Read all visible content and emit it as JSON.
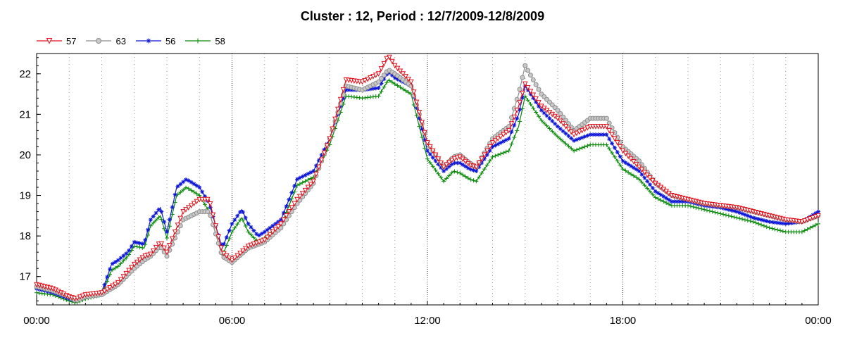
{
  "chart_data": {
    "type": "line",
    "title": "Cluster : 12, Period : 12/7/2009-12/8/2009",
    "xlabel": "",
    "ylabel": "",
    "x_ticks": [
      "00:00",
      "06:00",
      "12:00",
      "18:00",
      "00:00"
    ],
    "x_tick_hours": [
      0,
      6,
      12,
      18,
      24
    ],
    "xlim": [
      0,
      24
    ],
    "ylim": [
      16.3,
      22.5
    ],
    "y_ticks": [
      17,
      18,
      19,
      20,
      21,
      22
    ],
    "grid": {
      "vertical_major": true,
      "vertical_minor": true,
      "horizontal": false
    },
    "legend_position": "top-left",
    "x_unit": "hours",
    "series": [
      {
        "name": "57",
        "color": "#e0101a",
        "marker": "triangle-down",
        "x": [
          0,
          0.5,
          1,
          1.2,
          1.5,
          2,
          2.5,
          3,
          3.3,
          3.5,
          3.8,
          4,
          4.5,
          5,
          5.3,
          5.7,
          6,
          6.5,
          7,
          7.5,
          8,
          8.5,
          9,
          9.5,
          10,
          10.5,
          10.8,
          11,
          11.5,
          12,
          12.5,
          12.8,
          13,
          13.3,
          13.5,
          14,
          14.5,
          14.8,
          15,
          15.5,
          16,
          16.5,
          17,
          17.5,
          18,
          18.5,
          19,
          19.5,
          20,
          20.5,
          21,
          21.5,
          22,
          22.5,
          23,
          23.5,
          24
        ],
        "y": [
          16.8,
          16.7,
          16.5,
          16.45,
          16.55,
          16.6,
          16.85,
          17.3,
          17.5,
          17.55,
          17.85,
          17.6,
          18.6,
          18.9,
          18.9,
          17.6,
          17.4,
          17.75,
          17.9,
          18.3,
          18.9,
          19.35,
          20.4,
          21.85,
          21.8,
          22.0,
          22.45,
          22.2,
          21.8,
          20.3,
          19.7,
          19.9,
          19.95,
          19.75,
          19.7,
          20.3,
          20.6,
          21.2,
          21.75,
          21.2,
          20.9,
          20.5,
          20.7,
          20.7,
          20.1,
          19.7,
          19.3,
          19.0,
          18.9,
          18.8,
          18.75,
          18.7,
          18.6,
          18.5,
          18.4,
          18.35,
          18.5
        ]
      },
      {
        "name": "63",
        "color": "#8e8e8e",
        "marker": "circle",
        "x": [
          0,
          0.5,
          1,
          1.2,
          1.5,
          2,
          2.5,
          3,
          3.3,
          3.5,
          3.8,
          4,
          4.5,
          5,
          5.3,
          5.7,
          6,
          6.5,
          7,
          7.5,
          8,
          8.5,
          9,
          9.5,
          10,
          10.5,
          10.8,
          11,
          11.5,
          12,
          12.5,
          12.8,
          13,
          13.3,
          13.5,
          14,
          14.5,
          14.8,
          15,
          15.5,
          16,
          16.5,
          17,
          17.5,
          18,
          18.5,
          19,
          19.5,
          20,
          20.5,
          21,
          21.5,
          22,
          22.5,
          23,
          23.5,
          24
        ],
        "y": [
          16.75,
          16.65,
          16.5,
          16.4,
          16.5,
          16.55,
          16.8,
          17.2,
          17.4,
          17.5,
          17.75,
          17.5,
          18.4,
          18.6,
          18.6,
          17.5,
          17.35,
          17.7,
          17.85,
          18.2,
          18.8,
          19.3,
          20.4,
          21.7,
          21.6,
          21.8,
          22.1,
          22.0,
          21.7,
          20.3,
          19.7,
          19.95,
          20.0,
          19.8,
          19.7,
          20.4,
          20.7,
          21.5,
          22.2,
          21.5,
          21.1,
          20.6,
          20.9,
          20.9,
          20.2,
          19.85,
          19.3,
          19.0,
          18.9,
          18.8,
          18.75,
          18.7,
          18.6,
          18.5,
          18.4,
          18.35,
          18.5
        ]
      },
      {
        "name": "56",
        "color": "#0b14d8",
        "marker": "star",
        "x": [
          0,
          0.5,
          1,
          1.2,
          1.5,
          2,
          2.3,
          2.5,
          2.8,
          3,
          3.3,
          3.5,
          3.8,
          4,
          4.3,
          4.6,
          5,
          5.3,
          5.7,
          6,
          6.3,
          6.5,
          6.8,
          7,
          7.5,
          8,
          8.5,
          9,
          9.5,
          10,
          10.5,
          10.8,
          11,
          11.5,
          12,
          12.5,
          12.8,
          13,
          13.3,
          13.5,
          14,
          14.5,
          14.8,
          15,
          15.5,
          16,
          16.5,
          17,
          17.5,
          18,
          18.5,
          19,
          19.5,
          20,
          20.5,
          21,
          21.5,
          22,
          22.5,
          23,
          23.5,
          24
        ],
        "y": [
          16.7,
          16.6,
          16.45,
          16.4,
          16.5,
          16.6,
          17.3,
          17.4,
          17.6,
          17.85,
          17.8,
          18.4,
          18.7,
          18.1,
          19.2,
          19.4,
          19.2,
          18.8,
          17.7,
          18.3,
          18.65,
          18.3,
          18.0,
          18.1,
          18.4,
          19.4,
          19.6,
          20.4,
          21.6,
          21.6,
          21.65,
          22.05,
          21.9,
          21.7,
          20.1,
          19.6,
          19.8,
          19.8,
          19.65,
          19.6,
          20.2,
          20.4,
          21.0,
          21.7,
          21.1,
          20.7,
          20.35,
          20.5,
          20.5,
          19.85,
          19.6,
          19.1,
          18.85,
          18.85,
          18.75,
          18.7,
          18.6,
          18.45,
          18.35,
          18.3,
          18.35,
          18.6
        ]
      },
      {
        "name": "58",
        "color": "#0a8a0a",
        "marker": "plus",
        "x": [
          0,
          0.5,
          1,
          1.2,
          1.5,
          2,
          2.3,
          2.5,
          2.8,
          3,
          3.3,
          3.5,
          3.8,
          4,
          4.3,
          4.6,
          5,
          5.3,
          5.7,
          6,
          6.3,
          6.5,
          6.8,
          7,
          7.5,
          8,
          8.5,
          9,
          9.5,
          10,
          10.5,
          10.8,
          11,
          11.5,
          12,
          12.5,
          12.8,
          13,
          13.3,
          13.5,
          14,
          14.5,
          14.8,
          15,
          15.5,
          16,
          16.5,
          17,
          17.5,
          18,
          18.5,
          19,
          19.5,
          20,
          20.5,
          21,
          21.5,
          22,
          22.5,
          23,
          23.5,
          24
        ],
        "y": [
          16.6,
          16.55,
          16.4,
          16.35,
          16.45,
          16.55,
          17.15,
          17.25,
          17.5,
          17.75,
          17.7,
          18.25,
          18.5,
          17.95,
          19.0,
          19.2,
          19.0,
          18.6,
          17.5,
          18.1,
          18.45,
          18.1,
          17.85,
          17.95,
          18.25,
          19.25,
          19.45,
          20.25,
          21.45,
          21.4,
          21.45,
          21.85,
          21.75,
          21.5,
          19.9,
          19.35,
          19.6,
          19.55,
          19.4,
          19.35,
          19.95,
          20.1,
          20.7,
          21.45,
          20.85,
          20.45,
          20.1,
          20.25,
          20.25,
          19.65,
          19.4,
          18.95,
          18.75,
          18.75,
          18.65,
          18.55,
          18.45,
          18.35,
          18.2,
          18.1,
          18.1,
          18.3
        ]
      }
    ]
  }
}
